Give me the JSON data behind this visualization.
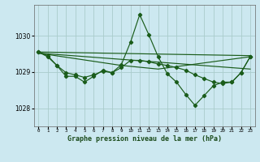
{
  "title": "Graphe pression niveau de la mer (hPa)",
  "bg_color": "#cce8f0",
  "grid_color": "#aacccc",
  "line_color": "#1a5c1a",
  "xlim": [
    -0.5,
    23.5
  ],
  "ylim": [
    1027.5,
    1030.85
  ],
  "yticks": [
    1028,
    1029,
    1030
  ],
  "xtick_labels": [
    "0",
    "1",
    "2",
    "3",
    "4",
    "5",
    "6",
    "7",
    "8",
    "9",
    "10",
    "11",
    "12",
    "13",
    "14",
    "15",
    "16",
    "17",
    "18",
    "19",
    "20",
    "21",
    "22",
    "23"
  ],
  "series_main": {
    "x": [
      0,
      1,
      2,
      3,
      4,
      5,
      6,
      7,
      8,
      9,
      10,
      11,
      12,
      13,
      14,
      15,
      16,
      17,
      18,
      19,
      20,
      21,
      22,
      23
    ],
    "y": [
      1029.55,
      1029.45,
      1029.18,
      1028.88,
      1028.88,
      1028.72,
      1028.88,
      1029.05,
      1028.98,
      1029.2,
      1029.82,
      1030.58,
      1030.02,
      1029.42,
      1028.95,
      1028.72,
      1028.38,
      1028.08,
      1028.35,
      1028.62,
      1028.72,
      1028.72,
      1028.98,
      1029.42
    ]
  },
  "series_trend1": {
    "x": [
      0,
      23
    ],
    "y": [
      1029.55,
      1029.45
    ]
  },
  "series_trend2": {
    "x": [
      0,
      23
    ],
    "y": [
      1029.52,
      1029.08
    ]
  },
  "series_trend3": {
    "x": [
      0,
      9,
      13,
      23
    ],
    "y": [
      1029.52,
      1029.18,
      1029.08,
      1029.42
    ]
  },
  "series_smooth": {
    "x": [
      0,
      1,
      2,
      3,
      4,
      5,
      6,
      7,
      8,
      9,
      10,
      11,
      12,
      13,
      14,
      15,
      16,
      17,
      18,
      19,
      20,
      21,
      22,
      23
    ],
    "y": [
      1029.55,
      1029.42,
      1029.18,
      1028.98,
      1028.92,
      1028.85,
      1028.92,
      1029.02,
      1028.98,
      1029.12,
      1029.32,
      1029.32,
      1029.28,
      1029.22,
      1029.18,
      1029.12,
      1029.05,
      1028.92,
      1028.82,
      1028.72,
      1028.68,
      1028.72,
      1028.98,
      1029.42
    ]
  }
}
